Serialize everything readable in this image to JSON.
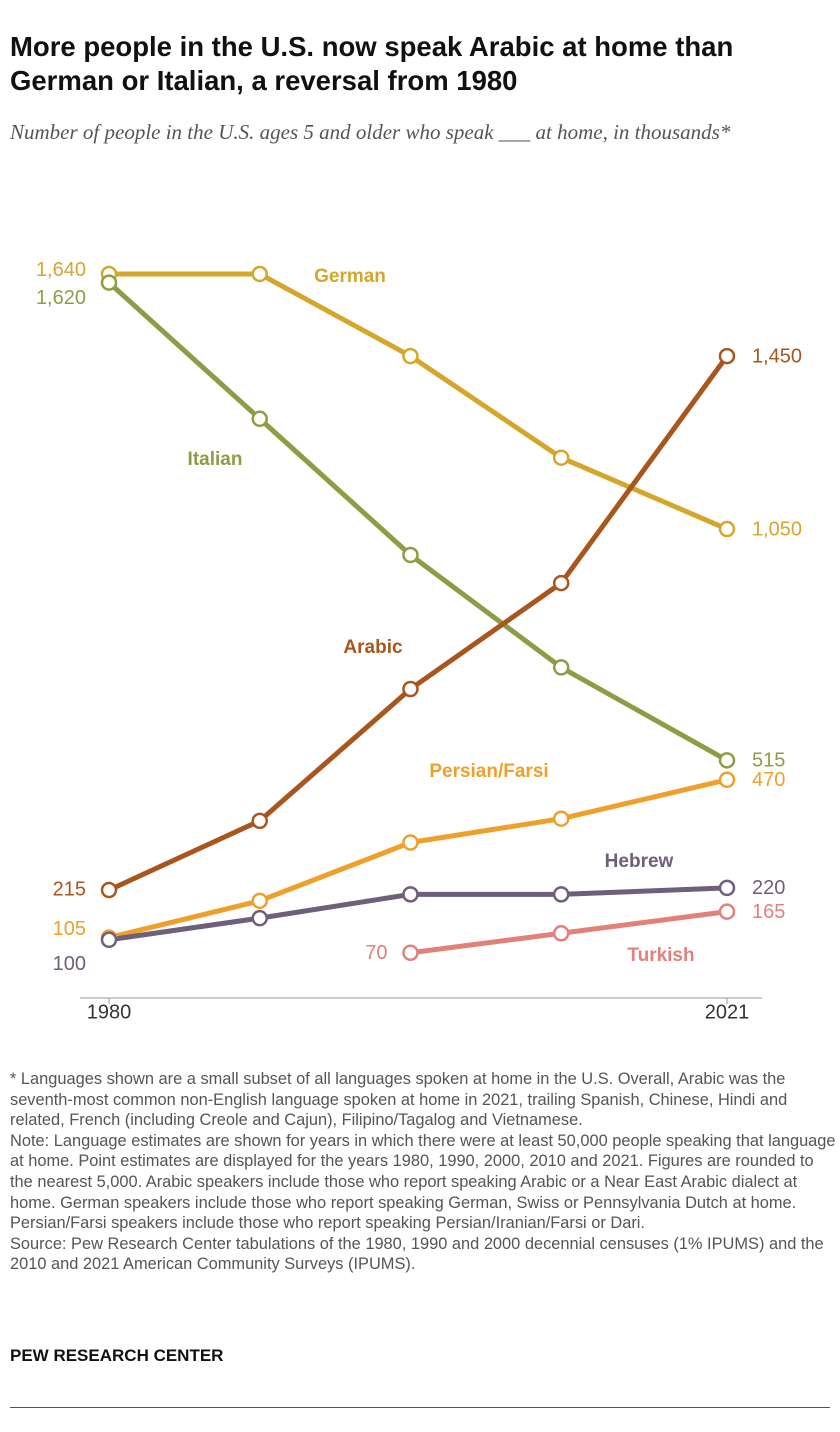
{
  "chart_data": {
    "type": "line",
    "title": "More people in the U.S. now speak Arabic at home than German or Italian, a reversal from 1980",
    "subtitle": "Number of people in the U.S. ages 5 and older who speak ___ at home, in thousands*",
    "x": [
      1980,
      1990,
      2000,
      2010,
      2021
    ],
    "xlim": [
      1980,
      2021
    ],
    "xticks": [
      1980,
      2021
    ],
    "ylim": [
      0,
      1700
    ],
    "series": [
      {
        "name": "German",
        "color": "#d4a72c",
        "values": [
          1640,
          1640,
          1450,
          1215,
          1050
        ],
        "value_labels": [
          "1,640",
          null,
          null,
          null,
          "1,050"
        ]
      },
      {
        "name": "Italian",
        "color": "#8c9e45",
        "values": [
          1620,
          1305,
          990,
          730,
          515
        ],
        "value_labels": [
          "1,620",
          null,
          null,
          null,
          "515"
        ]
      },
      {
        "name": "Arabic",
        "color": "#a8561e",
        "values": [
          215,
          375,
          680,
          925,
          1450
        ],
        "value_labels": [
          "215",
          null,
          null,
          null,
          "1,450"
        ]
      },
      {
        "name": "Persian/Farsi",
        "color": "#eda12a",
        "values": [
          105,
          190,
          325,
          380,
          470
        ],
        "value_labels": [
          "105",
          null,
          null,
          null,
          "470"
        ]
      },
      {
        "name": "Hebrew",
        "color": "#6e5f7a",
        "values": [
          100,
          150,
          205,
          205,
          220
        ],
        "value_labels": [
          "100",
          null,
          null,
          null,
          "220"
        ]
      },
      {
        "name": "Turkish",
        "color": "#e2807a",
        "values": [
          null,
          null,
          70,
          115,
          165
        ],
        "value_labels": [
          null,
          null,
          "70",
          null,
          "165"
        ]
      }
    ],
    "footnote": "* Languages shown are a small subset of all languages spoken at home in the U.S. Overall, Arabic was the seventh-most common non-English language spoken at home in 2021, trailing Spanish, Chinese, Hindi and related, French (including Creole and Cajun), Filipino/Tagalog and Vietnamese.",
    "note": "Note: Language estimates are shown for years in which there were at least 50,000 people speaking that language at home. Point estimates are displayed for the years 1980, 1990, 2000, 2010 and 2021. Figures are rounded to the nearest 5,000. Arabic speakers include those who report speaking Arabic or a Near East Arabic dialect at home. German speakers include those who report speaking German, Swiss or Pennsylvania Dutch at home. Persian/Farsi speakers include those who report speaking Persian/Iranian/Farsi or Dari.",
    "source": "Source: Pew Research Center tabulations of the 1980, 1990 and 2000 decennial censuses (1% IPUMS) and the 2010 and 2021 American Community Surveys (IPUMS).",
    "brand": "PEW RESEARCH CENTER"
  }
}
